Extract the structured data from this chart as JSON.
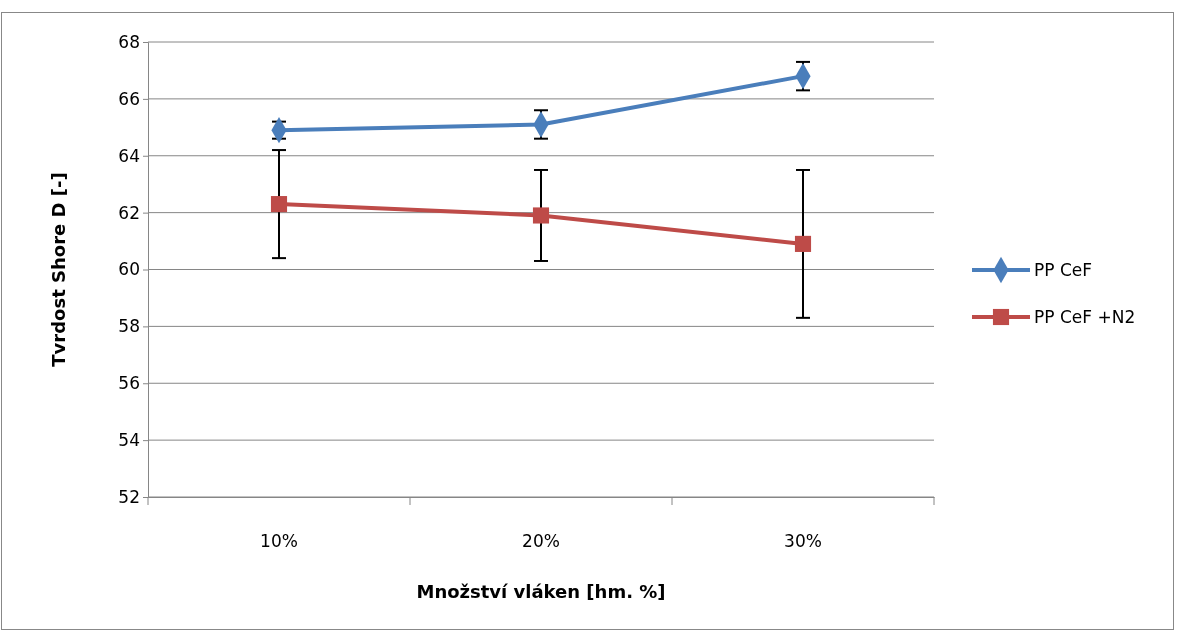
{
  "chart_data": {
    "type": "line",
    "xlabel": "Množství vláken [hm. %]",
    "ylabel": "Tvrdost Shore D [-]",
    "categories": [
      "10%",
      "20%",
      "30%"
    ],
    "ylim": [
      52,
      68
    ],
    "yticks": [
      52,
      54,
      56,
      58,
      60,
      62,
      64,
      66,
      68
    ],
    "grid": "y",
    "legend": "right",
    "series": [
      {
        "name": "PP CeF",
        "color": "#4a7ebb",
        "marker": "diamond",
        "values": [
          64.9,
          65.1,
          66.8
        ],
        "errors": [
          [
            64.6,
            65.2
          ],
          [
            64.6,
            65.6
          ],
          [
            66.3,
            67.3
          ]
        ]
      },
      {
        "name": "PP CeF +N2",
        "color": "#be4b48",
        "marker": "square",
        "values": [
          62.3,
          61.9,
          60.9
        ],
        "errors": [
          [
            60.4,
            64.2
          ],
          [
            60.3,
            63.5
          ],
          [
            58.3,
            63.5
          ]
        ]
      }
    ]
  }
}
